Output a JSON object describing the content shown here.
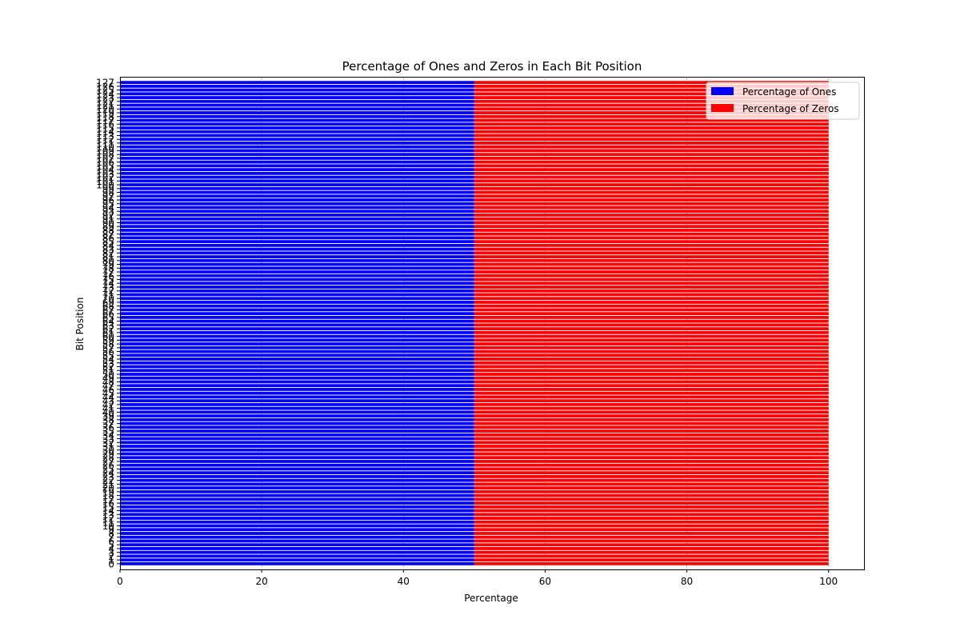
{
  "chart_data": {
    "type": "bar",
    "orientation": "horizontal",
    "stacked": true,
    "title": "Percentage of Ones and Zeros in Each Bit Position",
    "xlabel": "Percentage",
    "ylabel": "Bit Position",
    "xlim": [
      0,
      105
    ],
    "x_ticks": [
      0,
      20,
      40,
      60,
      80,
      100
    ],
    "ylim": [
      -1.5,
      128.5
    ],
    "categories": [
      "0",
      "1",
      "2",
      "3",
      "4",
      "5",
      "6",
      "7",
      "8",
      "9",
      "10",
      "11",
      "12",
      "13",
      "14",
      "15",
      "16",
      "17",
      "18",
      "19",
      "20",
      "21",
      "22",
      "23",
      "24",
      "25",
      "26",
      "27",
      "28",
      "29",
      "30",
      "31",
      "32",
      "33",
      "34",
      "35",
      "36",
      "37",
      "38",
      "39",
      "40",
      "41",
      "42",
      "43",
      "44",
      "45",
      "46",
      "47",
      "48",
      "49",
      "50",
      "51",
      "52",
      "53",
      "54",
      "55",
      "56",
      "57",
      "58",
      "59",
      "60",
      "61",
      "62",
      "63",
      "64",
      "65",
      "66",
      "67",
      "68",
      "69",
      "70",
      "71",
      "72",
      "73",
      "74",
      "75",
      "76",
      "77",
      "78",
      "79",
      "80",
      "81",
      "82",
      "83",
      "84",
      "85",
      "86",
      "87",
      "88",
      "89",
      "90",
      "91",
      "92",
      "93",
      "94",
      "95",
      "96",
      "97",
      "98",
      "99",
      "100",
      "101",
      "102",
      "103",
      "104",
      "105",
      "106",
      "107",
      "108",
      "109",
      "110",
      "111",
      "112",
      "113",
      "114",
      "115",
      "116",
      "117",
      "118",
      "119",
      "120",
      "121",
      "122",
      "123",
      "124",
      "125",
      "126",
      "127"
    ],
    "series": [
      {
        "name": "Percentage of Ones",
        "color": "#0000ff",
        "values": [
          50,
          50,
          50,
          50,
          50,
          50,
          50,
          50,
          50,
          50,
          50,
          50,
          50,
          50,
          50,
          50,
          50,
          50,
          50,
          50,
          50,
          50,
          50,
          50,
          50,
          50,
          50,
          50,
          50,
          50,
          50,
          50,
          50,
          50,
          50,
          50,
          50,
          50,
          50,
          50,
          50,
          50,
          50,
          50,
          50,
          50,
          50,
          50,
          50,
          50,
          50,
          50,
          50,
          50,
          50,
          50,
          50,
          50,
          50,
          50,
          50,
          50,
          50,
          50,
          50,
          50,
          50,
          50,
          50,
          50,
          50,
          50,
          50,
          50,
          50,
          50,
          50,
          50,
          50,
          50,
          50,
          50,
          50,
          50,
          50,
          50,
          50,
          50,
          50,
          50,
          50,
          50,
          50,
          50,
          50,
          50,
          50,
          50,
          50,
          50,
          50,
          50,
          50,
          50,
          50,
          50,
          50,
          50,
          50,
          50,
          50,
          50,
          50,
          50,
          50,
          50,
          50,
          50,
          50,
          50,
          50,
          50,
          50,
          50,
          50,
          50,
          50,
          50
        ]
      },
      {
        "name": "Percentage of Zeros",
        "color": "#ff0000",
        "values": [
          50,
          50,
          50,
          50,
          50,
          50,
          50,
          50,
          50,
          50,
          50,
          50,
          50,
          50,
          50,
          50,
          50,
          50,
          50,
          50,
          50,
          50,
          50,
          50,
          50,
          50,
          50,
          50,
          50,
          50,
          50,
          50,
          50,
          50,
          50,
          50,
          50,
          50,
          50,
          50,
          50,
          50,
          50,
          50,
          50,
          50,
          50,
          50,
          50,
          50,
          50,
          50,
          50,
          50,
          50,
          50,
          50,
          50,
          50,
          50,
          50,
          50,
          50,
          50,
          50,
          50,
          50,
          50,
          50,
          50,
          50,
          50,
          50,
          50,
          50,
          50,
          50,
          50,
          50,
          50,
          50,
          50,
          50,
          50,
          50,
          50,
          50,
          50,
          50,
          50,
          50,
          50,
          50,
          50,
          50,
          50,
          50,
          50,
          50,
          50,
          50,
          50,
          50,
          50,
          50,
          50,
          50,
          50,
          50,
          50,
          50,
          50,
          50,
          50,
          50,
          50,
          50,
          50,
          50,
          50,
          50,
          50,
          50,
          50,
          50,
          50,
          50,
          50
        ]
      }
    ],
    "grid": "x-dashed",
    "legend_position": "top-right"
  }
}
